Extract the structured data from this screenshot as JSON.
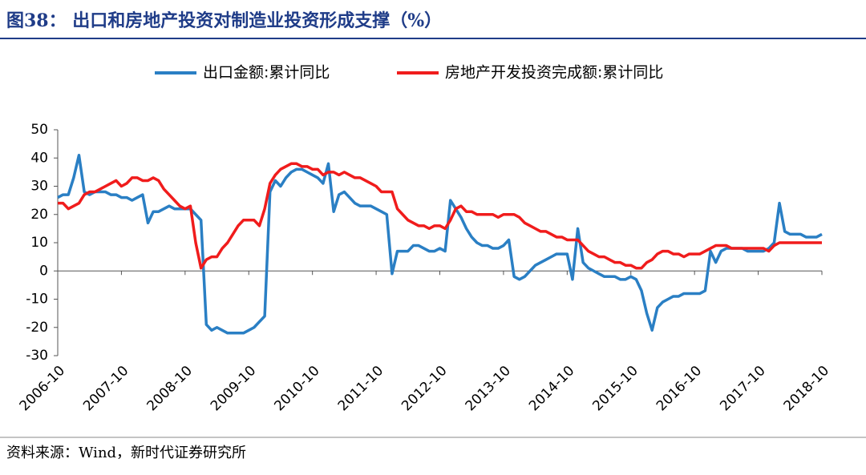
{
  "chart_data": {
    "type": "line",
    "title": "图38：  出口和房地产投资对制造业投资形成支撑（%）",
    "source": "资料来源：Wind，新时代证券研究所",
    "categories": [
      "2006-10",
      null,
      null,
      null,
      null,
      null,
      null,
      null,
      null,
      null,
      null,
      null,
      "2007-10",
      null,
      null,
      null,
      null,
      null,
      null,
      null,
      null,
      null,
      null,
      null,
      "2008-10",
      null,
      null,
      null,
      null,
      null,
      null,
      null,
      null,
      null,
      null,
      null,
      "2009-10",
      null,
      null,
      null,
      null,
      null,
      null,
      null,
      null,
      null,
      null,
      null,
      "2010-10",
      null,
      null,
      null,
      null,
      null,
      null,
      null,
      null,
      null,
      null,
      null,
      "2011-10",
      null,
      null,
      null,
      null,
      null,
      null,
      null,
      null,
      null,
      null,
      null,
      "2012-10",
      null,
      null,
      null,
      null,
      null,
      null,
      null,
      null,
      null,
      null,
      null,
      "2013-10",
      null,
      null,
      null,
      null,
      null,
      null,
      null,
      null,
      null,
      null,
      null,
      "2014-10",
      null,
      null,
      null,
      null,
      null,
      null,
      null,
      null,
      null,
      null,
      null,
      "2015-10",
      null,
      null,
      null,
      null,
      null,
      null,
      null,
      null,
      null,
      null,
      null,
      "2016-10",
      null,
      null,
      null,
      null,
      null,
      null,
      null,
      null,
      null,
      null,
      null,
      "2017-10",
      null,
      null,
      null,
      null,
      null,
      null,
      null,
      null,
      null,
      null,
      null,
      "2018-10"
    ],
    "series": [
      {
        "name": "出口金额:累计同比",
        "color": "#2a7fc4",
        "values": [
          26,
          27,
          27,
          33,
          41,
          28,
          27,
          28,
          28,
          28,
          27,
          27,
          26,
          26,
          25,
          26,
          27,
          17,
          21,
          21,
          22,
          23,
          22,
          22,
          22,
          22,
          20,
          18,
          -19,
          -21,
          -20,
          -21,
          -22,
          -22,
          -22,
          -22,
          -21,
          -20,
          -18,
          -16,
          28,
          32,
          30,
          33,
          35,
          36,
          36,
          35,
          34,
          33,
          31,
          38,
          21,
          27,
          28,
          26,
          24,
          23,
          23,
          23,
          22,
          21,
          20,
          -1,
          7,
          7,
          7,
          9,
          9,
          8,
          7,
          7,
          8,
          7,
          25,
          22,
          19,
          15,
          12,
          10,
          9,
          9,
          8,
          8,
          9,
          11,
          -2,
          -3,
          -2,
          0,
          2,
          3,
          4,
          5,
          6,
          6,
          6,
          -3,
          15,
          3,
          1,
          0,
          -1,
          -2,
          -2,
          -2,
          -3,
          -3,
          -2,
          -3,
          -7,
          -15,
          -21,
          -13,
          -11,
          -10,
          -9,
          -9,
          -8,
          -8,
          -8,
          -8,
          -7,
          7,
          3,
          7,
          8,
          8,
          8,
          8,
          7,
          7,
          7,
          7,
          8,
          10,
          24,
          14,
          13,
          13,
          13,
          12,
          12,
          12,
          13
        ]
      },
      {
        "name": "房地产开发投资完成额:累计同比",
        "color": "#f01c1c",
        "values": [
          24,
          24,
          22,
          23,
          24,
          27,
          28,
          28,
          29,
          30,
          31,
          32,
          30,
          31,
          33,
          33,
          32,
          32,
          33,
          32,
          29,
          27,
          25,
          23,
          22,
          23,
          10,
          1,
          4,
          5,
          5,
          8,
          10,
          13,
          16,
          18,
          18,
          18,
          16,
          22,
          31,
          34,
          36,
          37,
          38,
          38,
          37,
          37,
          36,
          36,
          34,
          35,
          35,
          34,
          35,
          34,
          33,
          33,
          32,
          31,
          30,
          28,
          28,
          28,
          22,
          20,
          18,
          17,
          16,
          16,
          15,
          16,
          16,
          15,
          18,
          22,
          23,
          21,
          21,
          20,
          20,
          20,
          20,
          19,
          20,
          20,
          20,
          19,
          17,
          16,
          15,
          14,
          14,
          13,
          12,
          12,
          11,
          11,
          11,
          9,
          7,
          6,
          5,
          5,
          4,
          3,
          3,
          2,
          2,
          1,
          1,
          3,
          4,
          6,
          7,
          7,
          6,
          6,
          5,
          6,
          6,
          6,
          7,
          8,
          9,
          9,
          9,
          8,
          8,
          8,
          8,
          8,
          8,
          8,
          7,
          9,
          10,
          10,
          10,
          10,
          10,
          10,
          10,
          10,
          10
        ]
      }
    ],
    "ylim": [
      -30,
      50
    ],
    "yticks": [
      -30,
      -20,
      -10,
      0,
      10,
      20,
      30,
      40,
      50
    ],
    "legend": "top"
  }
}
